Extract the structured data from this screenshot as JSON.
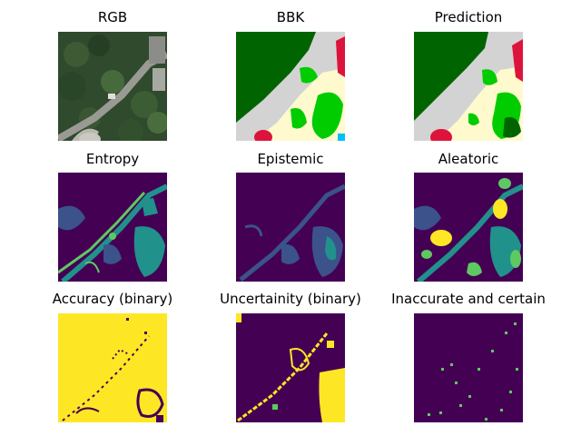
{
  "figure": {
    "panels": [
      {
        "id": "rgb",
        "title": "RGB"
      },
      {
        "id": "bbk",
        "title": "BBK"
      },
      {
        "id": "prediction",
        "title": "Prediction"
      },
      {
        "id": "entropy",
        "title": "Entropy"
      },
      {
        "id": "epistemic",
        "title": "Epistemic"
      },
      {
        "id": "aleatoric",
        "title": "Aleatoric"
      },
      {
        "id": "accuracy",
        "title": "Accuracy (binary)"
      },
      {
        "id": "uncertainty",
        "title": "Uncertainity (binary)"
      },
      {
        "id": "inaccurate",
        "title": "Inaccurate and certain"
      }
    ]
  },
  "colors": {
    "viridis_dark": "#440154",
    "viridis_blue": "#3b528b",
    "viridis_teal": "#21918c",
    "viridis_green": "#5ec962",
    "viridis_yellow": "#fde725",
    "forest": "#006400",
    "road": "#d3d3d3",
    "open_land": "#fffacd",
    "vegetation": "#00cc00",
    "building": "#dc143c"
  }
}
